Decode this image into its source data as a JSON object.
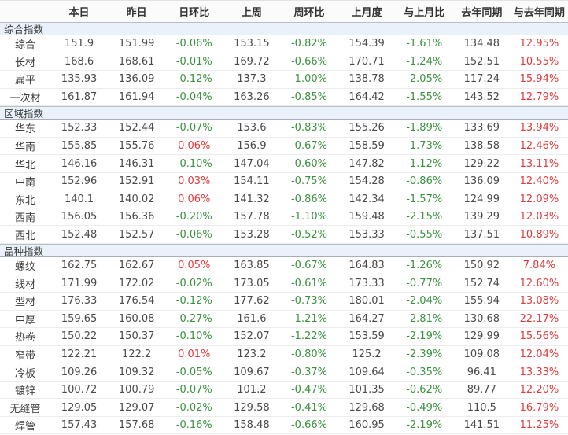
{
  "colors": {
    "positive_pct": "#e03b3b",
    "negative_pct": "#3c9140",
    "plain_value": "#4a4a4a",
    "section_bg": "#e9f2fa",
    "header_bg": "#fbfbfb"
  },
  "table": {
    "columns": [
      "本日",
      "昨日",
      "日环比",
      "上周",
      "周环比",
      "上月度",
      "与上月比",
      "去年同期",
      "与去年同期"
    ],
    "row_label_header": "",
    "sections": [
      {
        "title": "综合指数",
        "rows": [
          {
            "label": "综合",
            "values": [
              "151.9",
              "151.99",
              "-0.06%",
              "153.15",
              "-0.82%",
              "154.39",
              "-1.61%",
              "134.48",
              "12.95%"
            ]
          },
          {
            "label": "长材",
            "values": [
              "168.6",
              "168.61",
              "-0.01%",
              "169.72",
              "-0.66%",
              "170.71",
              "-1.24%",
              "152.51",
              "10.55%"
            ]
          },
          {
            "label": "扁平",
            "values": [
              "135.93",
              "136.09",
              "-0.12%",
              "137.3",
              "-1.00%",
              "138.78",
              "-2.05%",
              "117.24",
              "15.94%"
            ]
          },
          {
            "label": "一次材",
            "values": [
              "161.87",
              "161.94",
              "-0.04%",
              "163.26",
              "-0.85%",
              "164.42",
              "-1.55%",
              "143.52",
              "12.79%"
            ]
          }
        ]
      },
      {
        "title": "区域指数",
        "rows": [
          {
            "label": "华东",
            "values": [
              "152.33",
              "152.44",
              "-0.07%",
              "153.6",
              "-0.83%",
              "155.26",
              "-1.89%",
              "133.69",
              "13.94%"
            ]
          },
          {
            "label": "华南",
            "values": [
              "155.85",
              "155.76",
              "0.06%",
              "156.9",
              "-0.67%",
              "158.59",
              "-1.73%",
              "138.58",
              "12.46%"
            ]
          },
          {
            "label": "华北",
            "values": [
              "146.16",
              "146.31",
              "-0.10%",
              "147.04",
              "-0.60%",
              "147.82",
              "-1.12%",
              "129.22",
              "13.11%"
            ]
          },
          {
            "label": "中南",
            "values": [
              "152.96",
              "152.91",
              "0.03%",
              "154.11",
              "-0.75%",
              "154.28",
              "-0.86%",
              "136.09",
              "12.40%"
            ]
          },
          {
            "label": "东北",
            "values": [
              "140.1",
              "140.02",
              "0.06%",
              "141.32",
              "-0.86%",
              "142.34",
              "-1.57%",
              "124.99",
              "12.09%"
            ]
          },
          {
            "label": "西南",
            "values": [
              "156.05",
              "156.36",
              "-0.20%",
              "157.78",
              "-1.10%",
              "159.48",
              "-2.15%",
              "139.29",
              "12.03%"
            ]
          },
          {
            "label": "西北",
            "values": [
              "152.48",
              "152.57",
              "-0.06%",
              "153.28",
              "-0.52%",
              "153.33",
              "-0.55%",
              "137.51",
              "10.89%"
            ]
          }
        ]
      },
      {
        "title": "品种指数",
        "rows": [
          {
            "label": "螺纹",
            "values": [
              "162.75",
              "162.67",
              "0.05%",
              "163.85",
              "-0.67%",
              "164.83",
              "-1.26%",
              "150.92",
              "7.84%"
            ]
          },
          {
            "label": "线材",
            "values": [
              "171.99",
              "172.02",
              "-0.02%",
              "173.05",
              "-0.61%",
              "173.33",
              "-0.77%",
              "152.74",
              "12.60%"
            ]
          },
          {
            "label": "型材",
            "values": [
              "176.33",
              "176.54",
              "-0.12%",
              "177.62",
              "-0.73%",
              "180.01",
              "-2.04%",
              "155.94",
              "13.08%"
            ]
          },
          {
            "label": "中厚",
            "values": [
              "159.65",
              "160.08",
              "-0.27%",
              "161.6",
              "-1.21%",
              "164.27",
              "-2.81%",
              "130.68",
              "22.17%"
            ]
          },
          {
            "label": "热卷",
            "values": [
              "150.22",
              "150.37",
              "-0.10%",
              "152.07",
              "-1.22%",
              "153.59",
              "-2.19%",
              "129.99",
              "15.56%"
            ]
          },
          {
            "label": "窄带",
            "values": [
              "122.21",
              "122.2",
              "0.01%",
              "123.2",
              "-0.80%",
              "125.2",
              "-2.39%",
              "109.08",
              "12.04%"
            ]
          },
          {
            "label": "冷板",
            "values": [
              "109.26",
              "109.32",
              "-0.05%",
              "109.67",
              "-0.37%",
              "109.64",
              "-0.35%",
              "96.41",
              "13.33%"
            ]
          },
          {
            "label": "镀锌",
            "values": [
              "100.72",
              "100.79",
              "-0.07%",
              "101.2",
              "-0.47%",
              "101.35",
              "-0.62%",
              "89.77",
              "12.20%"
            ]
          },
          {
            "label": "无缝管",
            "values": [
              "129.05",
              "129.07",
              "-0.02%",
              "129.58",
              "-0.41%",
              "129.68",
              "-0.49%",
              "110.5",
              "16.79%"
            ]
          },
          {
            "label": "焊管",
            "values": [
              "157.43",
              "157.68",
              "-0.16%",
              "158.48",
              "-0.66%",
              "160.95",
              "-2.19%",
              "141.51",
              "11.25%"
            ]
          }
        ]
      }
    ]
  }
}
